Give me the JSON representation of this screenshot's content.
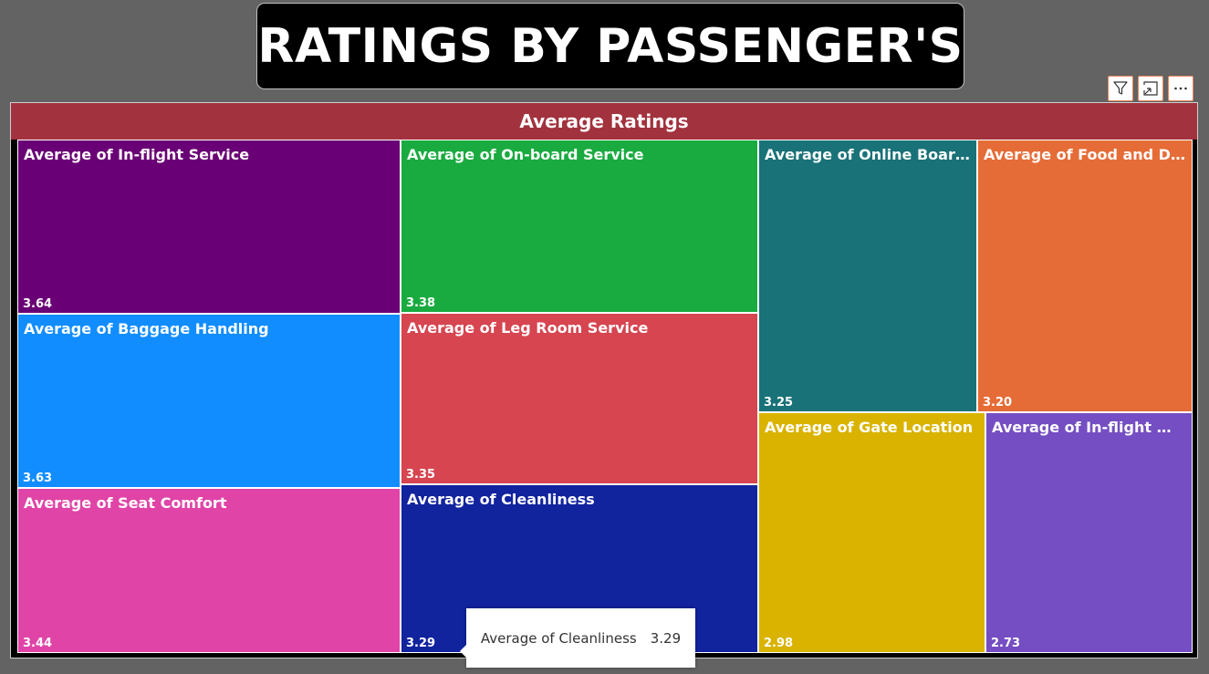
{
  "page_title": "RATINGS BY PASSENGER'S",
  "toolbar": {
    "filter_icon": "filter-icon",
    "focus_icon": "focus-mode-icon",
    "more_icon": "more-options-icon"
  },
  "colors": {
    "background": "#636363",
    "header": "#a2323d"
  },
  "chart_data": {
    "type": "treemap",
    "title": "Average Ratings",
    "items": [
      {
        "label": "Average of In-flight Service",
        "value": 3.64,
        "value_label": "3.64",
        "color": "#6a0075"
      },
      {
        "label": "Average of Baggage Handling",
        "value": 3.63,
        "value_label": "3.63",
        "color": "#118dff"
      },
      {
        "label": "Average of Seat Comfort",
        "value": 3.44,
        "value_label": "3.44",
        "color": "#e044a7"
      },
      {
        "label": "Average of On-board Service",
        "value": 3.38,
        "value_label": "3.38",
        "color": "#1aab40"
      },
      {
        "label": "Average of Leg Room Service",
        "value": 3.35,
        "value_label": "3.35",
        "color": "#d64550"
      },
      {
        "label": "Average of Cleanliness",
        "value": 3.29,
        "value_label": "3.29",
        "color": "#12239e"
      },
      {
        "label": "Average of Online Boardi...",
        "value": 3.25,
        "value_label": "3.25",
        "color": "#197278"
      },
      {
        "label": "Average of Food and Dri...",
        "value": 3.2,
        "value_label": "3.20",
        "color": "#e66c37"
      },
      {
        "label": "Average of Gate Location",
        "value": 2.98,
        "value_label": "2.98",
        "color": "#d9b300"
      },
      {
        "label": "Average of In-flight Wi...",
        "value": 2.73,
        "value_label": "2.73",
        "color": "#744ec2"
      }
    ]
  },
  "tooltip": {
    "label": "Average of Cleanliness",
    "value": "3.29"
  }
}
